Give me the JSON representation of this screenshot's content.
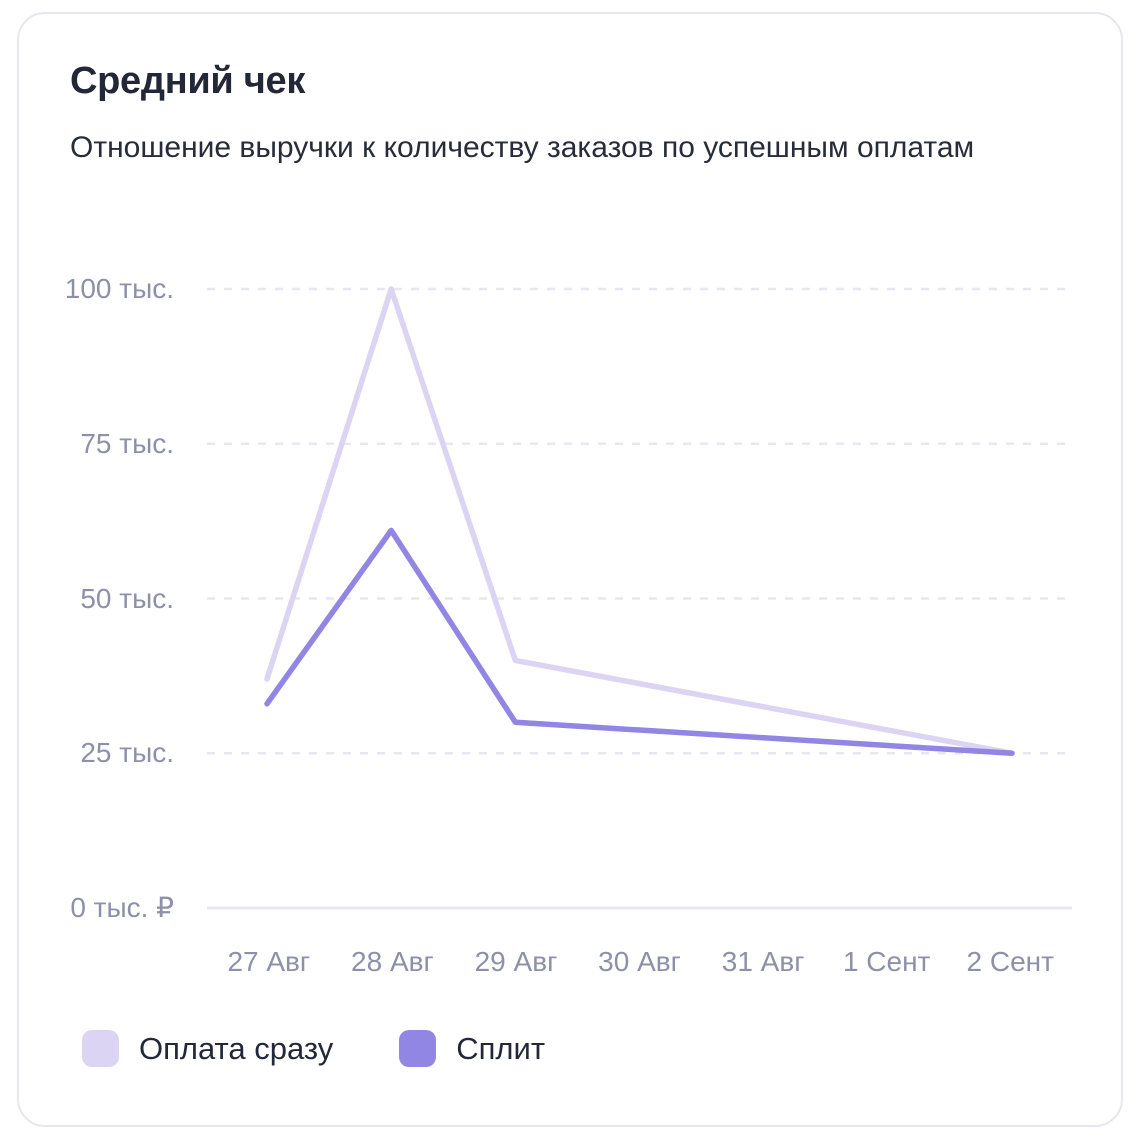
{
  "chart_data": {
    "type": "line",
    "title": "Средний чек",
    "subtitle": "Отношение выручки к количеству заказов по успешным оплатам",
    "unit": "тыс. ₽",
    "categories": [
      "27 Авг",
      "28 Авг",
      "29 Авг",
      "30 Авг",
      "31 Авг",
      "1 Сент",
      "2 Сент"
    ],
    "series": [
      {
        "name": "Оплата сразу",
        "color": "#dbd5f3",
        "values": [
          37,
          100,
          40,
          36.25,
          32.5,
          28.75,
          25
        ]
      },
      {
        "name": "Сплит",
        "color": "#9186e3",
        "values": [
          33,
          61,
          30,
          28.75,
          27.5,
          26.25,
          25
        ]
      }
    ],
    "yticks": [
      {
        "value": 0,
        "label": "0 тыс. ₽"
      },
      {
        "value": 25,
        "label": "25 тыс."
      },
      {
        "value": 50,
        "label": "50 тыс."
      },
      {
        "value": 75,
        "label": "75 тыс."
      },
      {
        "value": 100,
        "label": "100 тыс."
      }
    ],
    "ylim": [
      0,
      100
    ],
    "grid": "horizontal-dashed",
    "legend_position": "bottom",
    "colors": {
      "text_dark": "#232838",
      "axis_label": "#8d90a9",
      "gridline": "#e8e7f0"
    }
  }
}
